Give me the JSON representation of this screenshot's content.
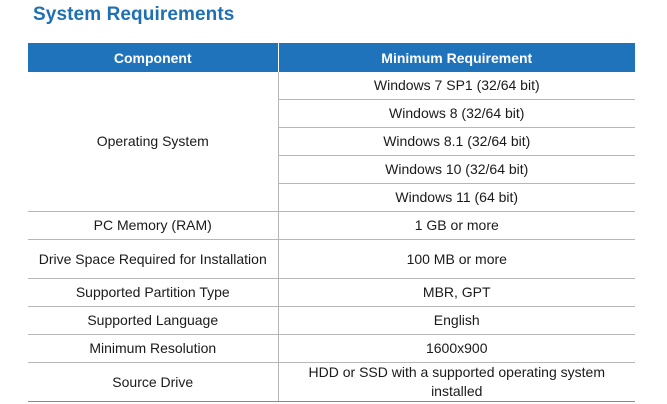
{
  "title": "System Requirements",
  "table": {
    "headers": {
      "component": "Component",
      "requirement": "Minimum Requirement"
    },
    "os": {
      "component": "Operating System",
      "versions": [
        "Windows 7 SP1 (32/64 bit)",
        "Windows 8 (32/64 bit)",
        "Windows 8.1 (32/64 bit)",
        "Windows 10 (32/64 bit)",
        "Windows 11 (64 bit)"
      ]
    },
    "rows": [
      {
        "component": "PC Memory (RAM)",
        "requirement": "1 GB or more"
      },
      {
        "component": "Drive Space Required for Installation",
        "requirement": "100 MB or more"
      },
      {
        "component": "Supported Partition Type",
        "requirement": "MBR, GPT"
      },
      {
        "component": "Supported Language",
        "requirement": "English"
      },
      {
        "component": "Minimum Resolution",
        "requirement": "1600x900"
      },
      {
        "component": "Source Drive",
        "requirement": "HDD or SSD with a supported operating system installed"
      }
    ]
  },
  "colors": {
    "accent": "#1f6fb4",
    "header_bg": "#1f73bb"
  }
}
